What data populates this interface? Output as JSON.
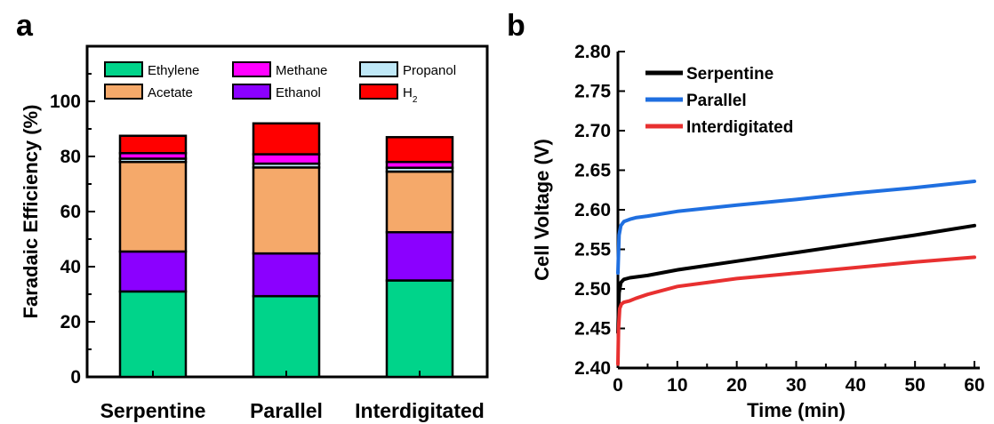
{
  "panels": {
    "a": "a",
    "b": "b"
  },
  "chart_data": [
    {
      "type": "bar",
      "stacked": true,
      "ylabel": "Faradaic Efficiency (%)",
      "ylim": [
        0,
        120
      ],
      "yticks": [
        "0",
        "20",
        "40",
        "60",
        "80",
        "100"
      ],
      "categories": [
        "Serpentine",
        "Parallel",
        "Interdigitated"
      ],
      "series": [
        {
          "name": "Ethylene",
          "color": "#00d48a",
          "values": [
            31,
            29.3,
            35
          ]
        },
        {
          "name": "Ethanol",
          "color": "#8b00ff",
          "values": [
            14.5,
            15.5,
            17.5
          ]
        },
        {
          "name": "Acetate",
          "color": "#f5a96a",
          "values": [
            32.5,
            31.2,
            22
          ]
        },
        {
          "name": "Propanol",
          "color": "#bfe8f7",
          "values": [
            1.2,
            1.4,
            1.4
          ]
        },
        {
          "name": "Methane",
          "color": "#ff00ff",
          "values": [
            2,
            3.4,
            2.1
          ]
        },
        {
          "name": "H2",
          "color": "#ff0000",
          "values": [
            6.3,
            11.2,
            9
          ]
        }
      ],
      "legend_order": [
        "Ethylene",
        "Methane",
        "Propanol",
        "Acetate",
        "Ethanol",
        "H2"
      ],
      "legend_placement": "top",
      "grid": false
    },
    {
      "type": "line",
      "xlabel": "Time (min)",
      "ylabel": "Cell Voltage (V)",
      "xlim": [
        0,
        60
      ],
      "ylim": [
        2.4,
        2.8
      ],
      "xticks": [
        "0",
        "10",
        "20",
        "30",
        "40",
        "50",
        "60"
      ],
      "yticks": [
        "2.40",
        "2.45",
        "2.50",
        "2.55",
        "2.60",
        "2.65",
        "2.70",
        "2.75",
        "2.80"
      ],
      "legend_placement": "top-left",
      "grid": false,
      "series": [
        {
          "name": "Serpentine",
          "color": "#000000",
          "x": [
            0,
            0.2,
            0.5,
            1,
            2,
            3,
            5,
            10,
            20,
            30,
            40,
            50,
            60
          ],
          "y": [
            2.445,
            2.495,
            2.508,
            2.512,
            2.514,
            2.515,
            2.517,
            2.524,
            2.535,
            2.546,
            2.557,
            2.568,
            2.58
          ]
        },
        {
          "name": "Parallel",
          "color": "#1f6fe0",
          "x": [
            0,
            0.2,
            0.5,
            1,
            2,
            3,
            5,
            10,
            20,
            30,
            40,
            50,
            60
          ],
          "y": [
            2.52,
            2.568,
            2.58,
            2.585,
            2.588,
            2.59,
            2.592,
            2.598,
            2.606,
            2.613,
            2.621,
            2.628,
            2.636
          ]
        },
        {
          "name": "Interdigitated",
          "color": "#e83030",
          "x": [
            0,
            0.1,
            0.3,
            0.6,
            1,
            2,
            3,
            5,
            10,
            15,
            20,
            30,
            40,
            50,
            60
          ],
          "y": [
            2.405,
            2.45,
            2.475,
            2.481,
            2.483,
            2.485,
            2.488,
            2.493,
            2.503,
            2.508,
            2.513,
            2.52,
            2.527,
            2.534,
            2.54
          ]
        }
      ]
    }
  ]
}
